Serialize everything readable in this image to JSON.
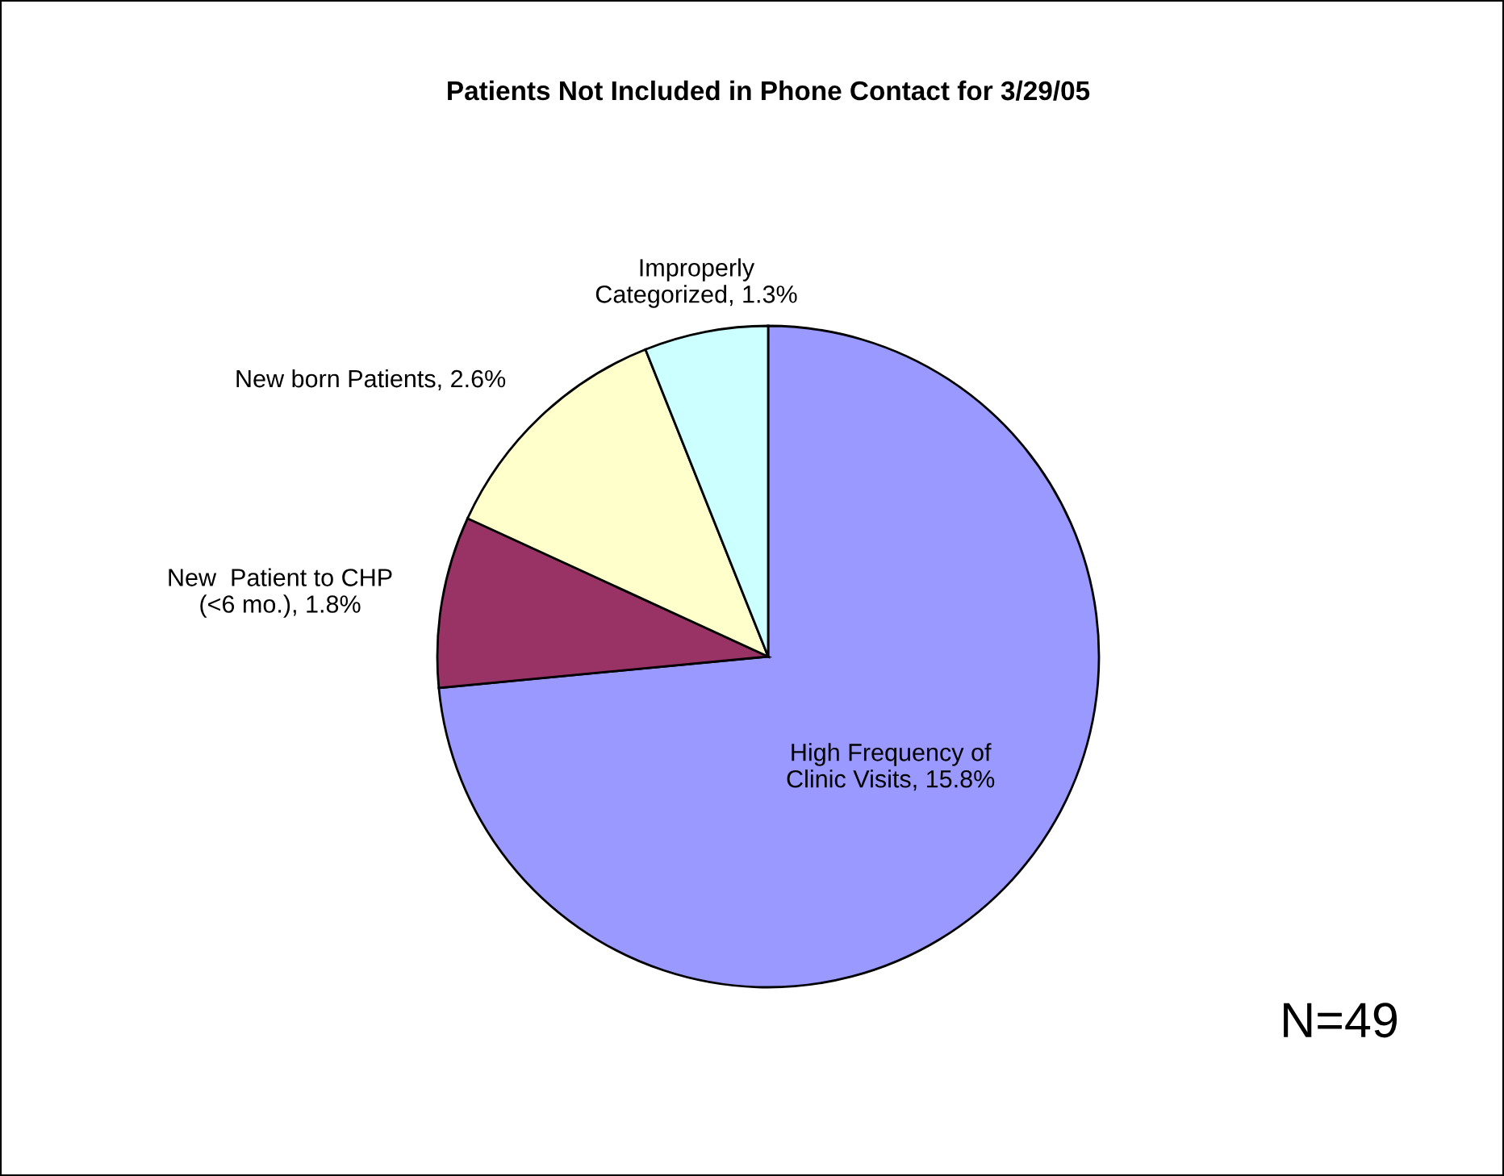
{
  "chart_data": {
    "type": "pie",
    "title": "Patients Not Included in Phone Contact for 3/29/05",
    "categories": [
      "High Frequency of\nClinic Visits",
      "New  Patient to CHP\n(<6 mo.)",
      "New born Patients",
      "Improperly\nCategorized"
    ],
    "values": [
      15.8,
      1.8,
      2.6,
      1.3
    ],
    "value_labels": [
      "15.8%",
      "1.8%",
      "2.6%",
      "1.3%"
    ],
    "colors": [
      "#9999ff",
      "#993366",
      "#ffffcc",
      "#ccffff"
    ],
    "legend": false,
    "annotations": [
      "N=49"
    ]
  }
}
